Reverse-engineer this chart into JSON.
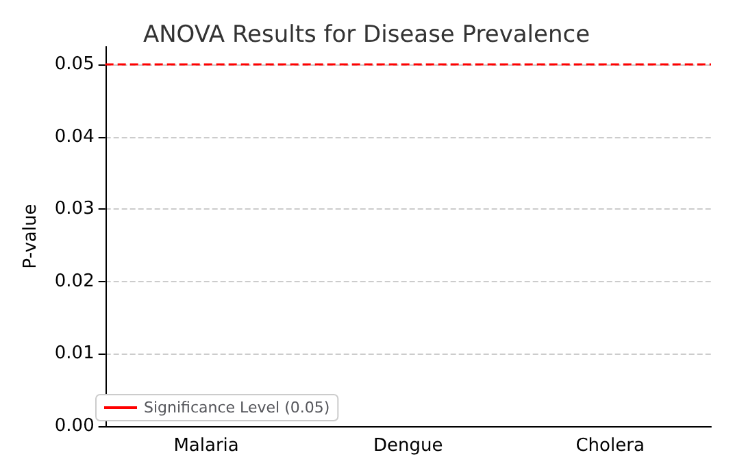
{
  "chart_data": {
    "type": "bar",
    "title": "ANOVA Results for Disease Prevalence",
    "ylabel": "P-value",
    "categories": [
      "Malaria",
      "Dengue",
      "Cholera"
    ],
    "values": [
      0,
      0,
      0
    ],
    "ylim": [
      0,
      0.0525
    ],
    "yticks": [
      {
        "value": 0,
        "label": "0.00"
      },
      0.01,
      0.02,
      0.03,
      0.04,
      0.05
    ],
    "ref_lines": [
      {
        "axis": "y",
        "value": 0.05,
        "label": "Significance Level (0.05)",
        "color": "#ff0000",
        "line_style": "dashed"
      }
    ],
    "grid": "y",
    "legend": "bottom left"
  }
}
